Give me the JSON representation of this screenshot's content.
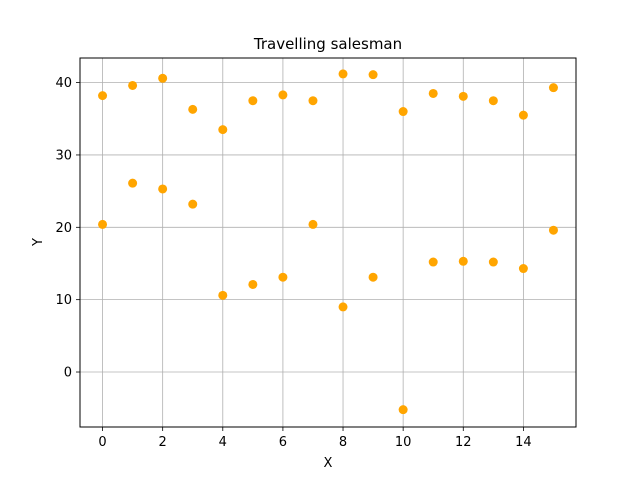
{
  "chart_data": {
    "type": "scatter",
    "title": "Travelling salesman",
    "xlabel": "X",
    "ylabel": "Y",
    "xlim": [
      -0.75,
      15.75
    ],
    "ylim": [
      -7.6,
      43.4
    ],
    "xticks": [
      0,
      2,
      4,
      6,
      8,
      10,
      12,
      14
    ],
    "yticks": [
      0,
      10,
      20,
      30,
      40
    ],
    "grid": true,
    "marker_color": "#ffa500",
    "grid_color": "#b0b0b0",
    "series": [
      {
        "points": [
          [
            0,
            38.2
          ],
          [
            1,
            39.6
          ],
          [
            2,
            40.6
          ],
          [
            3,
            36.3
          ],
          [
            4,
            33.5
          ],
          [
            5,
            37.5
          ],
          [
            6,
            38.3
          ],
          [
            7,
            37.5
          ],
          [
            8,
            41.2
          ],
          [
            9,
            41.1
          ],
          [
            10,
            36.0
          ],
          [
            11,
            38.5
          ],
          [
            12,
            38.1
          ],
          [
            13,
            37.5
          ],
          [
            14,
            35.5
          ],
          [
            15,
            39.3
          ],
          [
            0,
            20.4
          ],
          [
            1,
            26.1
          ],
          [
            2,
            25.3
          ],
          [
            3,
            23.2
          ],
          [
            4,
            10.6
          ],
          [
            5,
            12.1
          ],
          [
            6,
            13.1
          ],
          [
            7,
            20.4
          ],
          [
            8,
            9.0
          ],
          [
            9,
            13.1
          ],
          [
            10,
            -5.2
          ],
          [
            11,
            15.2
          ],
          [
            12,
            15.3
          ],
          [
            13,
            15.2
          ],
          [
            14,
            14.3
          ],
          [
            15,
            19.6
          ]
        ]
      }
    ]
  }
}
